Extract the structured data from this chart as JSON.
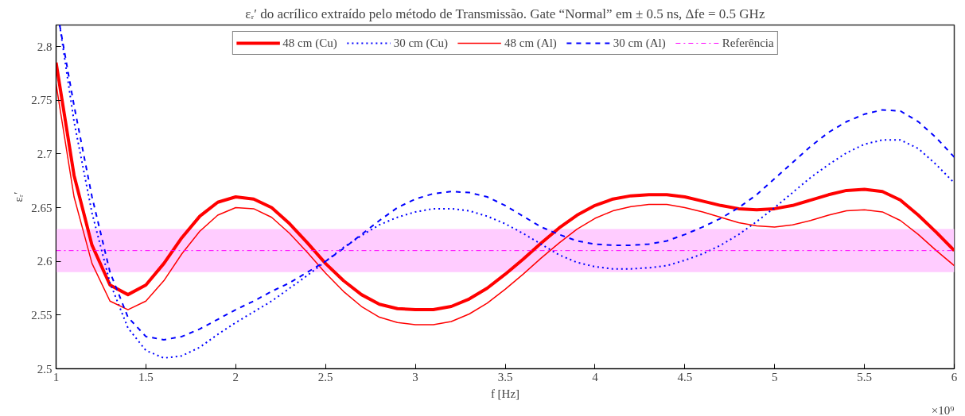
{
  "chart_data": {
    "type": "line",
    "title": "εᵣ′ do acrílico extraído pelo método de Transmissão. Gate “Normal” em ± 0.5 ns, Δfe = 0.5 GHz",
    "xlabel": "f [Hz]",
    "ylabel": "εᵣ′",
    "annotations": [
      "×10⁹"
    ],
    "xlim": [
      1,
      6
    ],
    "xticks": [
      1,
      1.5,
      2,
      2.5,
      3,
      3.5,
      4,
      4.5,
      5,
      5.5,
      6
    ],
    "ylim": [
      2.5,
      2.82
    ],
    "yticks": [
      2.5,
      2.55,
      2.6,
      2.65,
      2.7,
      2.75,
      2.8
    ],
    "grid": false,
    "legend": "top",
    "marker": "none",
    "series": [
      {
        "name": "48 cm (Cu)",
        "color": "#ff0000",
        "line_style": "solid",
        "x": [
          1.0,
          1.1,
          1.2,
          1.3,
          1.4,
          1.5,
          1.6,
          1.7,
          1.8,
          1.9,
          2.0,
          2.1,
          2.2,
          2.3,
          2.4,
          2.5,
          2.6,
          2.7,
          2.8,
          2.9,
          3.0,
          3.1,
          3.2,
          3.3,
          3.4,
          3.5,
          3.6,
          3.7,
          3.8,
          3.9,
          4.0,
          4.1,
          4.2,
          4.3,
          4.4,
          4.5,
          4.6,
          4.7,
          4.8,
          4.9,
          5.0,
          5.1,
          5.2,
          5.3,
          5.4,
          5.5,
          5.6,
          5.7,
          5.8,
          5.9,
          6.0
        ],
        "values": [
          2.785,
          2.68,
          2.615,
          2.578,
          2.569,
          2.578,
          2.598,
          2.622,
          2.642,
          2.655,
          2.66,
          2.658,
          2.65,
          2.635,
          2.617,
          2.598,
          2.582,
          2.569,
          2.56,
          2.556,
          2.555,
          2.555,
          2.558,
          2.565,
          2.575,
          2.588,
          2.602,
          2.617,
          2.631,
          2.643,
          2.652,
          2.658,
          2.661,
          2.662,
          2.662,
          2.66,
          2.656,
          2.652,
          2.649,
          2.648,
          2.649,
          2.652,
          2.657,
          2.662,
          2.666,
          2.667,
          2.665,
          2.657,
          2.643,
          2.627,
          2.61
        ]
      },
      {
        "name": "30 cm (Cu)",
        "color": "#0000ff",
        "line_style": "dotted",
        "x": [
          1.02,
          1.1,
          1.2,
          1.3,
          1.4,
          1.5,
          1.6,
          1.7,
          1.8,
          1.9,
          2.0,
          2.1,
          2.2,
          2.3,
          2.4,
          2.5,
          2.6,
          2.7,
          2.8,
          2.9,
          3.0,
          3.1,
          3.2,
          3.3,
          3.4,
          3.5,
          3.6,
          3.7,
          3.8,
          3.9,
          4.0,
          4.1,
          4.2,
          4.3,
          4.4,
          4.5,
          4.6,
          4.7,
          4.8,
          4.9,
          5.0,
          5.1,
          5.2,
          5.3,
          5.4,
          5.5,
          5.6,
          5.7,
          5.8,
          5.9,
          6.0
        ],
        "values": [
          2.82,
          2.73,
          2.645,
          2.58,
          2.538,
          2.517,
          2.51,
          2.512,
          2.52,
          2.532,
          2.543,
          2.553,
          2.563,
          2.575,
          2.587,
          2.6,
          2.613,
          2.624,
          2.634,
          2.641,
          2.646,
          2.649,
          2.649,
          2.647,
          2.642,
          2.635,
          2.626,
          2.616,
          2.606,
          2.599,
          2.595,
          2.593,
          2.593,
          2.594,
          2.596,
          2.601,
          2.607,
          2.615,
          2.625,
          2.637,
          2.65,
          2.664,
          2.678,
          2.69,
          2.701,
          2.709,
          2.713,
          2.713,
          2.705,
          2.69,
          2.673
        ]
      },
      {
        "name": "48 cm (Al)",
        "color": "#ff0000",
        "line_style": "solid",
        "x": [
          1.0,
          1.1,
          1.2,
          1.3,
          1.4,
          1.5,
          1.6,
          1.7,
          1.8,
          1.9,
          2.0,
          2.1,
          2.2,
          2.3,
          2.4,
          2.5,
          2.6,
          2.7,
          2.8,
          2.9,
          3.0,
          3.1,
          3.2,
          3.3,
          3.4,
          3.5,
          3.6,
          3.7,
          3.8,
          3.9,
          4.0,
          4.1,
          4.2,
          4.3,
          4.4,
          4.5,
          4.6,
          4.7,
          4.8,
          4.9,
          5.0,
          5.1,
          5.2,
          5.3,
          5.4,
          5.5,
          5.6,
          5.7,
          5.8,
          5.9,
          6.0
        ],
        "values": [
          2.765,
          2.66,
          2.598,
          2.563,
          2.555,
          2.563,
          2.582,
          2.607,
          2.628,
          2.643,
          2.65,
          2.649,
          2.641,
          2.626,
          2.608,
          2.589,
          2.572,
          2.558,
          2.548,
          2.543,
          2.541,
          2.541,
          2.544,
          2.551,
          2.561,
          2.574,
          2.588,
          2.603,
          2.617,
          2.63,
          2.64,
          2.647,
          2.651,
          2.653,
          2.653,
          2.65,
          2.646,
          2.641,
          2.636,
          2.633,
          2.632,
          2.634,
          2.638,
          2.643,
          2.647,
          2.648,
          2.646,
          2.638,
          2.625,
          2.61,
          2.596
        ]
      },
      {
        "name": "30 cm (Al)",
        "color": "#0000ff",
        "line_style": "dashed",
        "x": [
          1.02,
          1.1,
          1.2,
          1.3,
          1.4,
          1.5,
          1.6,
          1.7,
          1.8,
          1.9,
          2.0,
          2.1,
          2.2,
          2.3,
          2.4,
          2.5,
          2.6,
          2.7,
          2.8,
          2.9,
          3.0,
          3.1,
          3.2,
          3.3,
          3.4,
          3.5,
          3.6,
          3.7,
          3.8,
          3.9,
          4.0,
          4.1,
          4.2,
          4.3,
          4.4,
          4.5,
          4.6,
          4.7,
          4.8,
          4.9,
          5.0,
          5.1,
          5.2,
          5.3,
          5.4,
          5.5,
          5.6,
          5.7,
          5.8,
          5.9,
          6.0
        ],
        "values": [
          2.82,
          2.745,
          2.66,
          2.59,
          2.548,
          2.53,
          2.527,
          2.53,
          2.537,
          2.546,
          2.555,
          2.563,
          2.572,
          2.58,
          2.59,
          2.6,
          2.612,
          2.625,
          2.638,
          2.65,
          2.658,
          2.663,
          2.665,
          2.664,
          2.66,
          2.652,
          2.642,
          2.632,
          2.625,
          2.619,
          2.616,
          2.615,
          2.615,
          2.616,
          2.619,
          2.625,
          2.632,
          2.64,
          2.65,
          2.662,
          2.677,
          2.692,
          2.707,
          2.72,
          2.73,
          2.737,
          2.741,
          2.74,
          2.73,
          2.715,
          2.697
        ]
      }
    ],
    "ref_lines": [
      {
        "axis": "y",
        "value": 2.61,
        "label": "Referência",
        "color": "#ff00ff",
        "line_style": "dashdot"
      }
    ],
    "bands": [
      {
        "axis": "y",
        "from": 2.59,
        "to": 2.63,
        "color": "#ffccff"
      }
    ]
  }
}
